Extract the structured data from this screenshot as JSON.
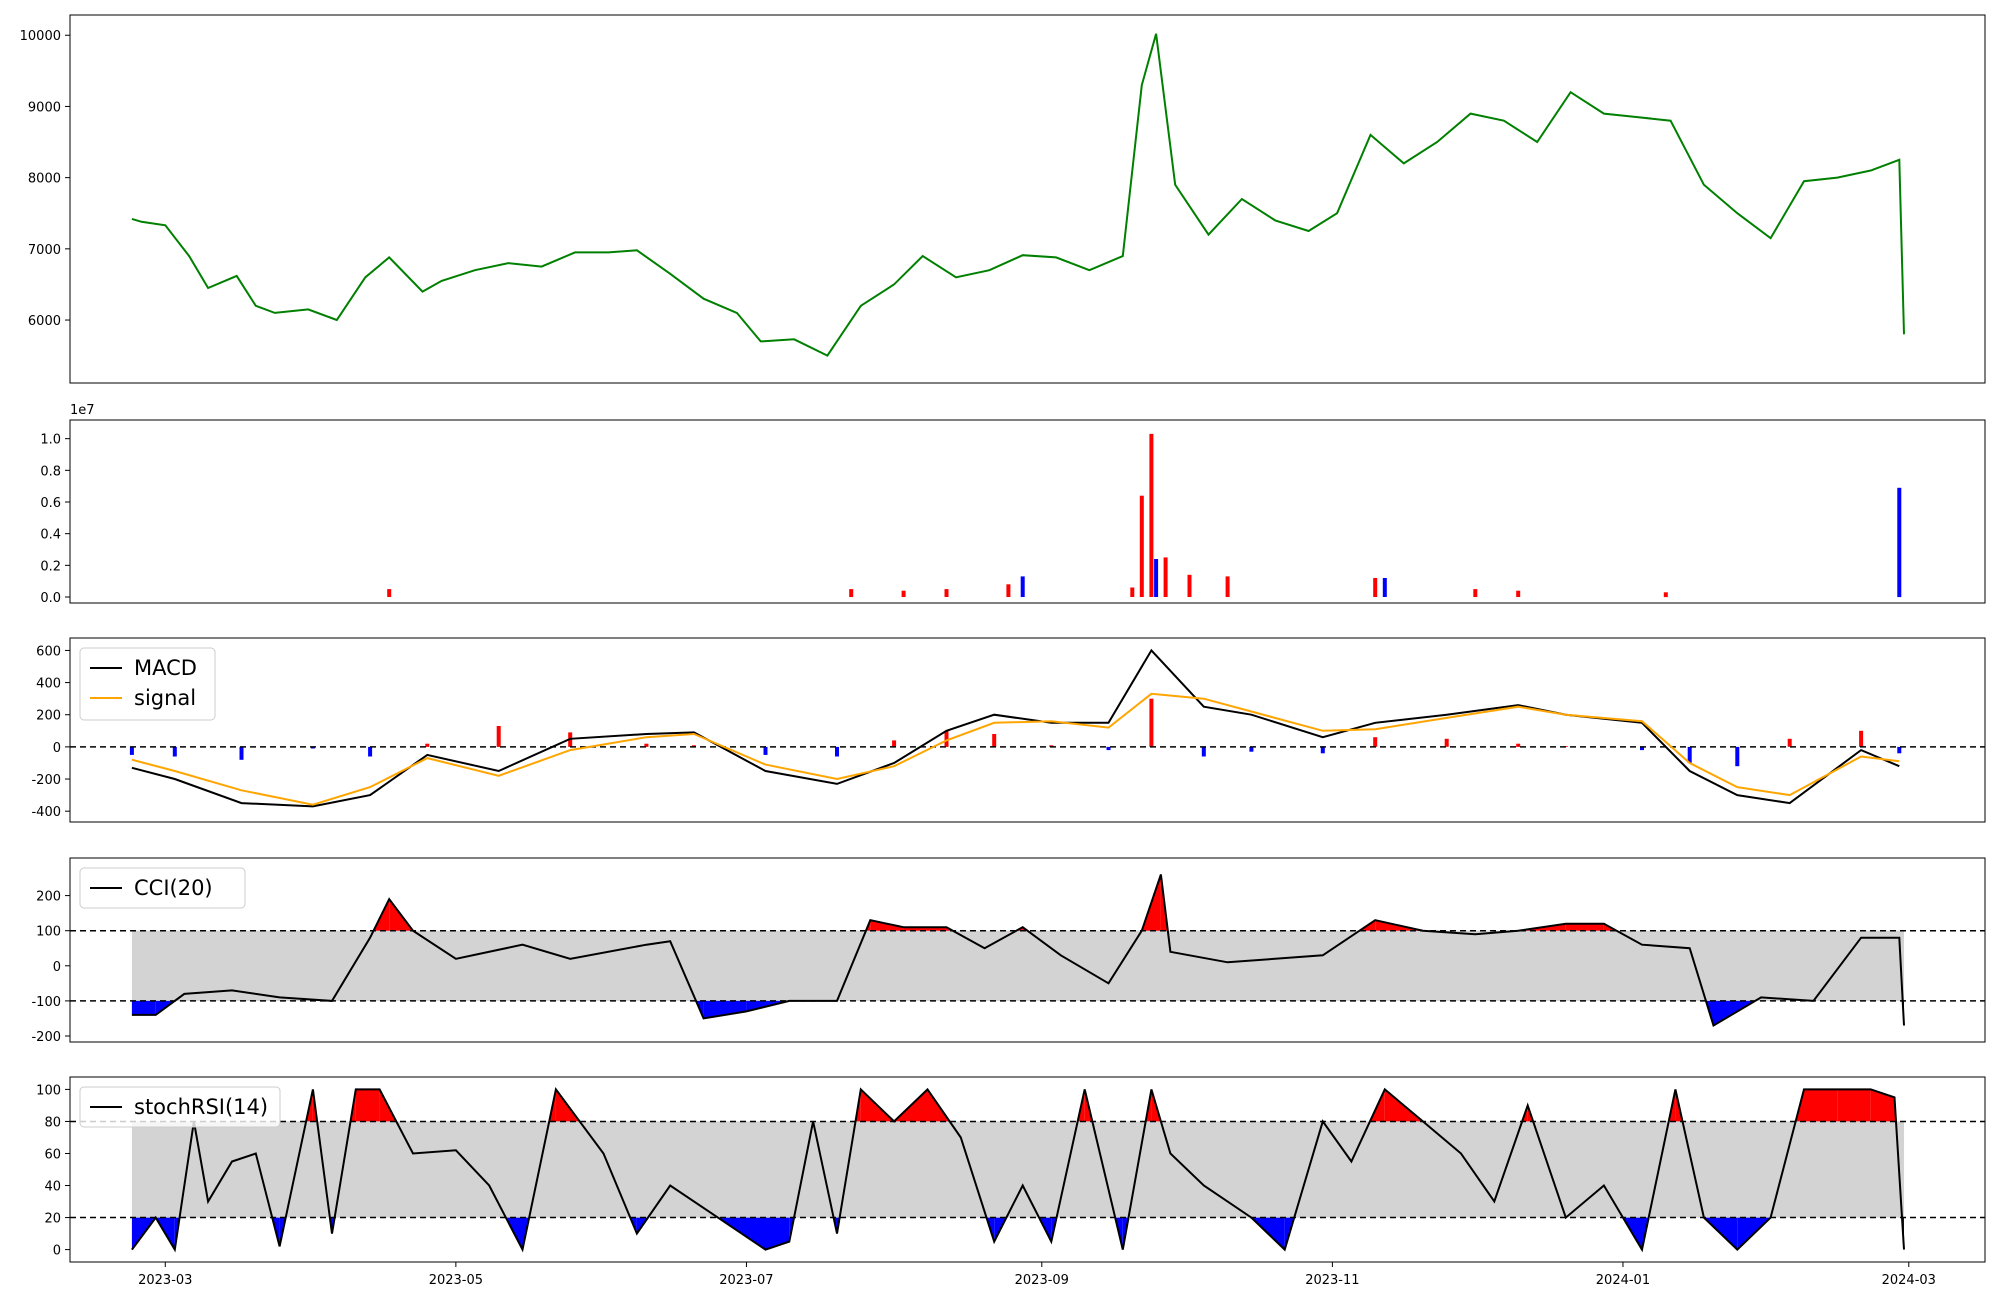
{
  "figure": {
    "x_ticks": [
      "2023-03",
      "2023-05",
      "2023-07",
      "2023-09",
      "2023-11",
      "2024-01",
      "2024-03"
    ]
  },
  "chart_data": [
    {
      "type": "line",
      "panel": "price",
      "color": "#008000",
      "ylim": [
        5200,
        10200
      ],
      "yticks": [
        6000,
        7000,
        8000,
        9000,
        10000
      ],
      "x": [
        "2023-02-22",
        "2023-02-24",
        "2023-03-01",
        "2023-03-06",
        "2023-03-10",
        "2023-03-16",
        "2023-03-20",
        "2023-03-24",
        "2023-03-31",
        "2023-04-06",
        "2023-04-12",
        "2023-04-17",
        "2023-04-24",
        "2023-04-28",
        "2023-05-05",
        "2023-05-12",
        "2023-05-19",
        "2023-05-26",
        "2023-06-02",
        "2023-06-08",
        "2023-06-15",
        "2023-06-22",
        "2023-06-29",
        "2023-07-04",
        "2023-07-11",
        "2023-07-18",
        "2023-07-25",
        "2023-08-01",
        "2023-08-07",
        "2023-08-14",
        "2023-08-21",
        "2023-08-28",
        "2023-09-04",
        "2023-09-11",
        "2023-09-18",
        "2023-09-22",
        "2023-09-25",
        "2023-09-29",
        "2023-10-06",
        "2023-10-13",
        "2023-10-20",
        "2023-10-27",
        "2023-11-02",
        "2023-11-09",
        "2023-11-16",
        "2023-11-23",
        "2023-11-30",
        "2023-12-07",
        "2023-12-14",
        "2023-12-21",
        "2023-12-28",
        "2024-01-04",
        "2024-01-11",
        "2024-01-18",
        "2024-01-25",
        "2024-02-01",
        "2024-02-08",
        "2024-02-15",
        "2024-02-22",
        "2024-02-28",
        "2024-02-29"
      ],
      "y": [
        7420,
        7380,
        7330,
        6900,
        6450,
        6620,
        6200,
        6100,
        6150,
        6000,
        6600,
        6880,
        6400,
        6550,
        6700,
        6800,
        6750,
        6950,
        6950,
        6980,
        6650,
        6300,
        6100,
        5700,
        5730,
        5500,
        6200,
        6500,
        6900,
        6600,
        6700,
        6910,
        6880,
        6700,
        6900,
        9300,
        10020,
        7900,
        7200,
        7700,
        7400,
        7250,
        7500,
        8600,
        8200,
        8500,
        8900,
        8800,
        8500,
        9200,
        8900,
        8850,
        8800,
        7900,
        7500,
        7150,
        7950,
        8000,
        8100,
        8250,
        5800
      ]
    },
    {
      "type": "bar",
      "panel": "volume",
      "scale_label": "1e7",
      "ylim": [
        0,
        1.08
      ],
      "yticks": [
        0.0,
        0.2,
        0.4,
        0.6,
        0.8,
        1.0
      ],
      "x": [
        "2023-04-17",
        "2023-07-23",
        "2023-08-03",
        "2023-08-12",
        "2023-08-25",
        "2023-08-28",
        "2023-09-20",
        "2023-09-22",
        "2023-09-24",
        "2023-09-25",
        "2023-09-27",
        "2023-10-02",
        "2023-10-10",
        "2023-11-10",
        "2023-11-12",
        "2023-12-01",
        "2023-12-10",
        "2024-01-10",
        "2024-02-28"
      ],
      "values": [
        0.05,
        0.05,
        0.04,
        0.05,
        0.08,
        0.13,
        0.06,
        0.64,
        1.03,
        0.24,
        0.25,
        0.14,
        0.13,
        0.12,
        0.12,
        0.05,
        0.04,
        0.03,
        0.69
      ],
      "colors": [
        "#ff0000",
        "#ff0000",
        "#ff0000",
        "#ff0000",
        "#ff0000",
        "#0000ff",
        "#ff0000",
        "#ff0000",
        "#ff0000",
        "#0000ff",
        "#ff0000",
        "#ff0000",
        "#ff0000",
        "#ff0000",
        "#0000ff",
        "#ff0000",
        "#ff0000",
        "#ff0000",
        "#0000ff"
      ]
    },
    {
      "type": "line",
      "panel": "macd",
      "ylim": [
        -430,
        640
      ],
      "yticks": [
        -400,
        -200,
        0,
        200,
        400,
        600
      ],
      "x": [
        "2023-02-22",
        "2023-03-03",
        "2023-03-17",
        "2023-04-01",
        "2023-04-13",
        "2023-04-25",
        "2023-05-10",
        "2023-05-25",
        "2023-06-10",
        "2023-06-20",
        "2023-07-05",
        "2023-07-20",
        "2023-08-01",
        "2023-08-12",
        "2023-08-22",
        "2023-09-03",
        "2023-09-15",
        "2023-09-24",
        "2023-10-05",
        "2023-10-15",
        "2023-10-30",
        "2023-11-10",
        "2023-11-25",
        "2023-12-10",
        "2023-12-20",
        "2024-01-05",
        "2024-01-15",
        "2024-01-25",
        "2024-02-05",
        "2024-02-20",
        "2024-02-28"
      ],
      "series": [
        {
          "name": "MACD",
          "color": "#000000",
          "values": [
            -130,
            -200,
            -350,
            -370,
            -300,
            -50,
            -150,
            50,
            80,
            90,
            -150,
            -230,
            -100,
            100,
            200,
            150,
            150,
            600,
            250,
            200,
            60,
            150,
            200,
            260,
            200,
            150,
            -150,
            -300,
            -350,
            -20,
            -120
          ]
        },
        {
          "name": "signal",
          "color": "#ffa500",
          "values": [
            -80,
            -150,
            -270,
            -360,
            -250,
            -70,
            -180,
            -20,
            60,
            80,
            -110,
            -200,
            -120,
            40,
            150,
            160,
            120,
            330,
            300,
            220,
            100,
            110,
            180,
            250,
            200,
            160,
            -100,
            -250,
            -300,
            -60,
            -90
          ]
        }
      ],
      "histogram": [
        -50,
        -60,
        -80,
        -10,
        -60,
        20,
        130,
        90,
        20,
        10,
        -50,
        -60,
        40,
        100,
        80,
        10,
        -20,
        300,
        -60,
        -30,
        -40,
        60,
        50,
        20,
        5,
        -20,
        -100,
        -120,
        50,
        100,
        -40
      ]
    },
    {
      "type": "line",
      "panel": "cci",
      "ylim": [
        -200,
        290
      ],
      "yticks": [
        -200,
        -100,
        0,
        100,
        200
      ],
      "bands": [
        -100,
        100
      ],
      "series": [
        {
          "name": "CCI(20)",
          "color": "#000000",
          "x": [
            "2023-02-22",
            "2023-02-27",
            "2023-03-05",
            "2023-03-15",
            "2023-03-25",
            "2023-04-05",
            "2023-04-13",
            "2023-04-17",
            "2023-04-22",
            "2023-05-01",
            "2023-05-15",
            "2023-05-25",
            "2023-06-10",
            "2023-06-15",
            "2023-06-22",
            "2023-07-01",
            "2023-07-10",
            "2023-07-20",
            "2023-07-27",
            "2023-08-03",
            "2023-08-12",
            "2023-08-20",
            "2023-08-28",
            "2023-09-05",
            "2023-09-15",
            "2023-09-22",
            "2023-09-26",
            "2023-09-28",
            "2023-10-10",
            "2023-10-20",
            "2023-10-30",
            "2023-11-10",
            "2023-11-20",
            "2023-12-01",
            "2023-12-10",
            "2023-12-20",
            "2023-12-28",
            "2024-01-05",
            "2024-01-15",
            "2024-01-20",
            "2024-01-30",
            "2024-02-10",
            "2024-02-20",
            "2024-02-28",
            "2024-02-29"
          ],
          "values": [
            -140,
            -140,
            -80,
            -70,
            -90,
            -100,
            80,
            190,
            100,
            20,
            60,
            20,
            60,
            70,
            -150,
            -130,
            -100,
            -100,
            130,
            110,
            110,
            50,
            110,
            30,
            -50,
            100,
            260,
            40,
            10,
            20,
            30,
            130,
            100,
            90,
            100,
            120,
            120,
            60,
            50,
            -170,
            -90,
            -100,
            80,
            80,
            -170
          ]
        }
      ]
    },
    {
      "type": "line",
      "panel": "stochrsi",
      "ylim": [
        -4,
        104
      ],
      "yticks": [
        0,
        20,
        40,
        60,
        80,
        100
      ],
      "bands": [
        20,
        80
      ],
      "series": [
        {
          "name": "stochRSI(14)",
          "color": "#000000",
          "x": [
            "2023-02-22",
            "2023-02-27",
            "2023-03-03",
            "2023-03-07",
            "2023-03-10",
            "2023-03-15",
            "2023-03-20",
            "2023-03-25",
            "2023-04-01",
            "2023-04-05",
            "2023-04-10",
            "2023-04-15",
            "2023-04-22",
            "2023-05-01",
            "2023-05-08",
            "2023-05-15",
            "2023-05-22",
            "2023-06-01",
            "2023-06-08",
            "2023-06-15",
            "2023-06-25",
            "2023-07-05",
            "2023-07-10",
            "2023-07-15",
            "2023-07-20",
            "2023-07-25",
            "2023-08-01",
            "2023-08-08",
            "2023-08-15",
            "2023-08-22",
            "2023-08-28",
            "2023-09-03",
            "2023-09-10",
            "2023-09-18",
            "2023-09-24",
            "2023-09-28",
            "2023-10-05",
            "2023-10-15",
            "2023-10-22",
            "2023-10-30",
            "2023-11-05",
            "2023-11-12",
            "2023-11-20",
            "2023-11-28",
            "2023-12-05",
            "2023-12-12",
            "2023-12-20",
            "2023-12-28",
            "2024-01-05",
            "2024-01-12",
            "2024-01-18",
            "2024-01-25",
            "2024-02-01",
            "2024-02-08",
            "2024-02-15",
            "2024-02-22",
            "2024-02-27",
            "2024-02-29"
          ],
          "values": [
            0,
            20,
            0,
            80,
            30,
            55,
            60,
            2,
            100,
            10,
            100,
            100,
            60,
            62,
            40,
            0,
            100,
            60,
            10,
            40,
            20,
            0,
            5,
            80,
            10,
            100,
            80,
            100,
            70,
            5,
            40,
            5,
            100,
            0,
            100,
            60,
            40,
            20,
            0,
            80,
            55,
            100,
            80,
            60,
            30,
            90,
            20,
            40,
            0,
            100,
            20,
            0,
            20,
            100,
            100,
            100,
            95,
            0
          ]
        }
      ]
    }
  ]
}
